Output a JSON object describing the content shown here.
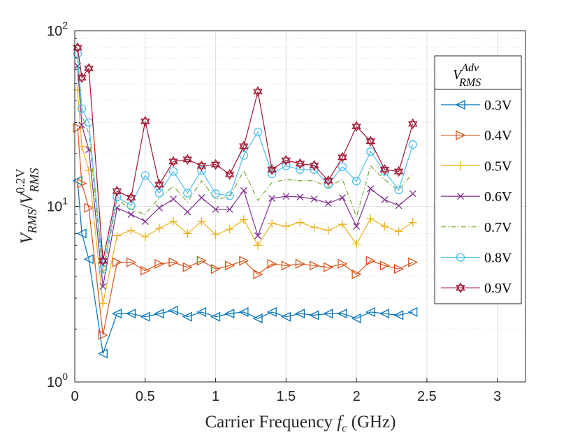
{
  "chart_data": {
    "type": "line",
    "xlabel": "Carrier Frequency f_c (GHz)",
    "xlabel_parts": {
      "pre": "Carrier Frequency ",
      "var": "f",
      "sub": "c",
      "post": " (GHz)"
    },
    "ylabel": "V_RMS / V_RMS^0.2V",
    "ylabel_parts": {
      "v": "V",
      "sub": "RMS",
      "slash": "/",
      "sup": "0.2V"
    },
    "y_scale": "log",
    "xlim": [
      0,
      3.2
    ],
    "ylim": [
      1,
      100
    ],
    "xticks": [
      0,
      0.5,
      1,
      1.5,
      2,
      2.5,
      3
    ],
    "xtick_labels": [
      "0",
      "0.5",
      "1",
      "1.5",
      "2",
      "2.5",
      "3"
    ],
    "ytick_labels": [
      {
        "base": "10",
        "exp": "0",
        "value": 1
      },
      {
        "base": "10",
        "exp": "1",
        "value": 10
      },
      {
        "base": "10",
        "exp": "2",
        "value": 100
      }
    ],
    "grid": true,
    "legend_position": "top-right",
    "legend_title": {
      "v": "V",
      "sup": "Adv",
      "sub": "RMS"
    },
    "x": [
      0.02,
      0.05,
      0.1,
      0.2,
      0.3,
      0.4,
      0.5,
      0.6,
      0.7,
      0.8,
      0.9,
      1.0,
      1.1,
      1.2,
      1.3,
      1.4,
      1.5,
      1.6,
      1.7,
      1.8,
      1.9,
      2.0,
      2.1,
      2.2,
      2.3,
      2.4
    ],
    "series": [
      {
        "name": "0.3V",
        "color": "#0072bd",
        "marker": "triangle-left",
        "values": [
          14,
          7,
          5,
          1.45,
          2.45,
          2.45,
          2.35,
          2.45,
          2.55,
          2.35,
          2.5,
          2.35,
          2.45,
          2.5,
          2.3,
          2.5,
          2.35,
          2.45,
          2.4,
          2.45,
          2.45,
          2.3,
          2.5,
          2.45,
          2.4,
          2.5
        ]
      },
      {
        "name": "0.4V",
        "color": "#d95319",
        "marker": "triangle-right",
        "values": [
          28,
          13.5,
          9.8,
          1.85,
          4.8,
          4.8,
          4.3,
          4.7,
          4.8,
          4.5,
          4.9,
          4.4,
          4.6,
          4.9,
          4.1,
          4.7,
          4.6,
          4.7,
          4.6,
          4.5,
          4.7,
          4.1,
          4.9,
          4.6,
          4.4,
          4.8
        ]
      },
      {
        "name": "0.5V",
        "color": "#edb120",
        "marker": "plus",
        "values": [
          46,
          22,
          16,
          2.8,
          6.8,
          7.3,
          6.7,
          7.5,
          8.2,
          7.0,
          8.2,
          6.9,
          7.4,
          8.4,
          6.0,
          8.0,
          7.7,
          8.1,
          7.6,
          7.3,
          7.9,
          6.1,
          8.5,
          7.7,
          7.2,
          8.1
        ]
      },
      {
        "name": "0.6V",
        "color": "#7e2f8e",
        "marker": "x",
        "values": [
          63,
          29,
          21,
          3.5,
          9.8,
          9.0,
          8.2,
          9.8,
          11.0,
          9.3,
          11.2,
          9.6,
          9.6,
          12.3,
          6.8,
          11.1,
          11.4,
          11.3,
          11.0,
          10.4,
          11.2,
          7.7,
          12.6,
          10.9,
          10.1,
          11.8
        ]
      },
      {
        "name": "0.7V",
        "color": "#77ac30",
        "marker": "none",
        "values": [
          70,
          33,
          26,
          4.0,
          11.0,
          9.6,
          9.0,
          11.2,
          13.0,
          10.6,
          14.0,
          11.0,
          11.3,
          16.0,
          10.8,
          13.7,
          14.2,
          14.0,
          14.0,
          12.8,
          14.3,
          8.7,
          17.0,
          14.2,
          12.3,
          15.5
        ]
      },
      {
        "name": "0.8V",
        "color": "#4dbeee",
        "marker": "circle",
        "values": [
          74,
          36,
          30,
          4.4,
          11.3,
          10.1,
          15.0,
          11.9,
          15.8,
          11.9,
          16.0,
          11.8,
          11.5,
          19.5,
          26.5,
          15.3,
          17.0,
          16.2,
          16.2,
          13.3,
          16.8,
          13.9,
          20.5,
          15.8,
          12.4,
          22.5
        ]
      },
      {
        "name": "0.9V",
        "color": "#a2142f",
        "marker": "hexagram",
        "values": [
          80,
          54,
          61,
          4.9,
          12.2,
          11.2,
          30.5,
          13.3,
          18.0,
          18.5,
          17.0,
          17.3,
          15.2,
          22.0,
          45.0,
          16.2,
          18.3,
          17.5,
          17.1,
          14.0,
          19.0,
          28.5,
          23.5,
          16.2,
          15.8,
          29.5
        ]
      }
    ]
  }
}
